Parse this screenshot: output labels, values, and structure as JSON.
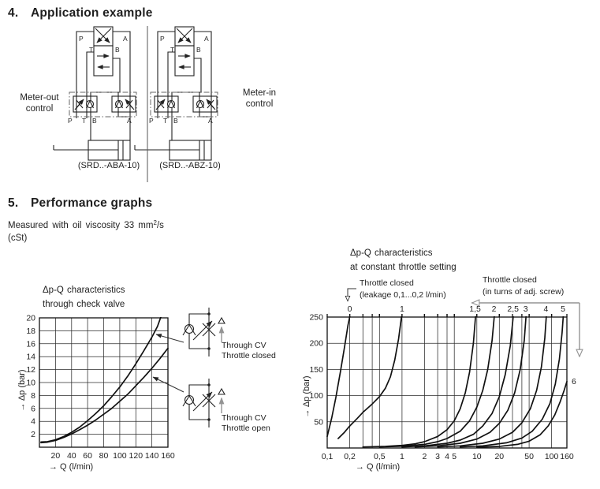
{
  "sections": {
    "s4": {
      "number": "4.",
      "title": "Application example"
    },
    "s5": {
      "number": "5.",
      "title": "Performance graphs"
    }
  },
  "viscosity": {
    "pre": "Measured with oil viscosity 33 mm",
    "sup": "2",
    "post": "/s",
    "line2": "(cSt)"
  },
  "app": {
    "meter_out": "Meter-out\ncontrol",
    "meter_in": "Meter-in\ncontrol",
    "caption_left": "(SRD..-ABA-10)",
    "caption_right": "(SRD..-ABZ-10)",
    "ports": {
      "p": "P",
      "t": "T",
      "b": "B",
      "a": "A"
    }
  },
  "symbols": {
    "cv_closed": "Through CV\nThrottle closed",
    "cv_open": "Through CV\nThrottle open"
  },
  "colors": {
    "ink": "#1f1f1f",
    "gray_leader": "#949494"
  },
  "chart_data": [
    {
      "type": "line",
      "id": "check-valve-chart",
      "title": "Δp-Q characteristics\nthrough check valve",
      "xlabel": "→ Q (l/min)",
      "ylabel": "→ Δp (bar)",
      "xscale": "linear",
      "xlim": [
        0,
        160
      ],
      "ylim": [
        0,
        20
      ],
      "grid": true,
      "x_gridlines": [
        20,
        40,
        60,
        80,
        100,
        120,
        140
      ],
      "y_gridlines": [
        2,
        4,
        6,
        8,
        10,
        12,
        14,
        16,
        18
      ],
      "x_ticks": [
        {
          "v": 20,
          "label": "20"
        },
        {
          "v": 40,
          "label": "40"
        },
        {
          "v": 60,
          "label": "60"
        },
        {
          "v": 80,
          "label": "80"
        },
        {
          "v": 100,
          "label": "100"
        },
        {
          "v": 120,
          "label": "120"
        },
        {
          "v": 140,
          "label": "140"
        },
        {
          "v": 160,
          "label": "160"
        }
      ],
      "y_ticks": [
        2,
        4,
        6,
        8,
        10,
        12,
        14,
        16,
        18,
        20
      ],
      "series": [
        {
          "name": "Through CV Throttle closed",
          "points": [
            [
              2,
              0.8
            ],
            [
              10,
              0.85
            ],
            [
              20,
              1.15
            ],
            [
              30,
              1.65
            ],
            [
              40,
              2.3
            ],
            [
              50,
              3.1
            ],
            [
              60,
              4.1
            ],
            [
              70,
              5.2
            ],
            [
              80,
              6.4
            ],
            [
              90,
              7.8
            ],
            [
              100,
              9.3
            ],
            [
              110,
              11.0
            ],
            [
              120,
              12.9
            ],
            [
              130,
              14.9
            ],
            [
              140,
              17.0
            ],
            [
              147,
              18.7
            ],
            [
              152,
              20.4
            ]
          ]
        },
        {
          "name": "Through CV Throttle open",
          "points": [
            [
              2,
              0.7
            ],
            [
              10,
              0.78
            ],
            [
              20,
              1.05
            ],
            [
              30,
              1.5
            ],
            [
              40,
              2.05
            ],
            [
              50,
              2.7
            ],
            [
              60,
              3.4
            ],
            [
              70,
              4.2
            ],
            [
              80,
              5.1
            ],
            [
              90,
              6.0
            ],
            [
              100,
              7.1
            ],
            [
              110,
              8.2
            ],
            [
              120,
              9.5
            ],
            [
              130,
              10.8
            ],
            [
              140,
              12.2
            ],
            [
              150,
              13.7
            ],
            [
              160,
              15.3
            ]
          ]
        }
      ]
    },
    {
      "type": "line",
      "id": "throttle-setting-chart",
      "title": "Δp-Q characteristics\nat constant throttle setting",
      "xlabel": "→ Q (l/min)",
      "ylabel": "→ Δp (bar)",
      "xscale": "log",
      "xlim": [
        0.1,
        160
      ],
      "ylim": [
        0,
        250
      ],
      "grid": true,
      "x_gridlines": [
        0.2,
        0.3,
        0.4,
        0.5,
        1,
        2,
        3,
        4,
        5,
        10,
        20,
        30,
        40,
        50,
        100
      ],
      "y_gridlines": [
        50,
        100,
        150,
        200
      ],
      "x_ticks": [
        {
          "v": 0.1,
          "label": "0,1"
        },
        {
          "v": 0.2,
          "label": "0,2"
        },
        {
          "v": 0.5,
          "label": "0,5"
        },
        {
          "v": 1,
          "label": "1"
        },
        {
          "v": 2,
          "label": "2"
        },
        {
          "v": 3,
          "label": "3"
        },
        {
          "v": 4,
          "label": "4"
        },
        {
          "v": 5,
          "label": "5"
        },
        {
          "v": 10,
          "label": "10"
        },
        {
          "v": 20,
          "label": "20"
        },
        {
          "v": 50,
          "label": "50"
        },
        {
          "v": 100,
          "label": "100"
        },
        {
          "v": 160,
          "label": "160"
        }
      ],
      "y_ticks": [
        50,
        100,
        150,
        200,
        250
      ],
      "annotations": {
        "closed_leak": "Throttle closed\n(leakage 0,1...0,2 l/min)",
        "closed_turns": "Throttle closed\n(in turns of adj. screw)"
      },
      "series": [
        {
          "label": "0",
          "label_side": "top",
          "label_x": 0.2,
          "points": [
            [
              0.1,
              22
            ],
            [
              0.115,
              58
            ],
            [
              0.13,
              95
            ],
            [
              0.15,
              145
            ],
            [
              0.17,
              192
            ],
            [
              0.19,
              235
            ],
            [
              0.205,
              258
            ]
          ]
        },
        {
          "label": "1",
          "label_side": "top",
          "label_x": 1,
          "points": [
            [
              0.14,
              18
            ],
            [
              0.17,
              30
            ],
            [
              0.2,
              42
            ],
            [
              0.25,
              56
            ],
            [
              0.3,
              68
            ],
            [
              0.4,
              84
            ],
            [
              0.5,
              98
            ],
            [
              0.6,
              114
            ],
            [
              0.7,
              136
            ],
            [
              0.8,
              168
            ],
            [
              0.9,
              208
            ],
            [
              1.0,
              258
            ]
          ]
        },
        {
          "label": "1,5",
          "label_side": "top",
          "label_x": 9.5,
          "points": [
            [
              0.3,
              2
            ],
            [
              0.6,
              3
            ],
            [
              1,
              5
            ],
            [
              1.5,
              8
            ],
            [
              2,
              12
            ],
            [
              3,
              22
            ],
            [
              4,
              35
            ],
            [
              5,
              52
            ],
            [
              6,
              75
            ],
            [
              7,
              105
            ],
            [
              8,
              145
            ],
            [
              9,
              200
            ],
            [
              9.7,
              258
            ]
          ]
        },
        {
          "label": "2",
          "label_side": "top",
          "label_x": 17,
          "points": [
            [
              0.5,
              2
            ],
            [
              1,
              3.5
            ],
            [
              2,
              7
            ],
            [
              3,
              12
            ],
            [
              4,
              18
            ],
            [
              6,
              32
            ],
            [
              8,
              52
            ],
            [
              10,
              78
            ],
            [
              12,
              110
            ],
            [
              14,
              150
            ],
            [
              16,
              205
            ],
            [
              17.3,
              258
            ]
          ]
        },
        {
          "label": "2,5",
          "label_side": "top",
          "label_x": 30.5,
          "points": [
            [
              1,
              2
            ],
            [
              2,
              4
            ],
            [
              4,
              9
            ],
            [
              6,
              15
            ],
            [
              9,
              26
            ],
            [
              12,
              42
            ],
            [
              16,
              66
            ],
            [
              20,
              98
            ],
            [
              24,
              140
            ],
            [
              28,
              195
            ],
            [
              31,
              258
            ]
          ]
        },
        {
          "label": "3",
          "label_side": "top",
          "label_x": 45,
          "points": [
            [
              1.5,
              2
            ],
            [
              3,
              4
            ],
            [
              6,
              9
            ],
            [
              10,
              17
            ],
            [
              15,
              30
            ],
            [
              20,
              47
            ],
            [
              26,
              72
            ],
            [
              32,
              105
            ],
            [
              38,
              150
            ],
            [
              43,
              205
            ],
            [
              45.8,
              258
            ]
          ]
        },
        {
          "label": "4",
          "label_side": "top",
          "label_x": 84,
          "points": [
            [
              3,
              2
            ],
            [
              6,
              4
            ],
            [
              12,
              9
            ],
            [
              20,
              17
            ],
            [
              30,
              30
            ],
            [
              40,
              48
            ],
            [
              52,
              75
            ],
            [
              63,
              110
            ],
            [
              73,
              155
            ],
            [
              81,
              210
            ],
            [
              85.5,
              258
            ]
          ]
        },
        {
          "label": "5",
          "label_side": "top",
          "label_x": 142,
          "points": [
            [
              6,
              2
            ],
            [
              12,
              4
            ],
            [
              25,
              10
            ],
            [
              40,
              19
            ],
            [
              55,
              32
            ],
            [
              75,
              55
            ],
            [
              95,
              85
            ],
            [
              112,
              122
            ],
            [
              127,
              170
            ],
            [
              138,
              220
            ],
            [
              144,
              258
            ]
          ]
        },
        {
          "label": "6",
          "label_side": "right",
          "label_y": 128,
          "points": [
            [
              10,
              1.5
            ],
            [
              20,
              3
            ],
            [
              35,
              7
            ],
            [
              50,
              13
            ],
            [
              70,
              25
            ],
            [
              90,
              42
            ],
            [
              110,
              63
            ],
            [
              130,
              88
            ],
            [
              147,
              110
            ],
            [
              160,
              127
            ]
          ]
        }
      ]
    }
  ]
}
